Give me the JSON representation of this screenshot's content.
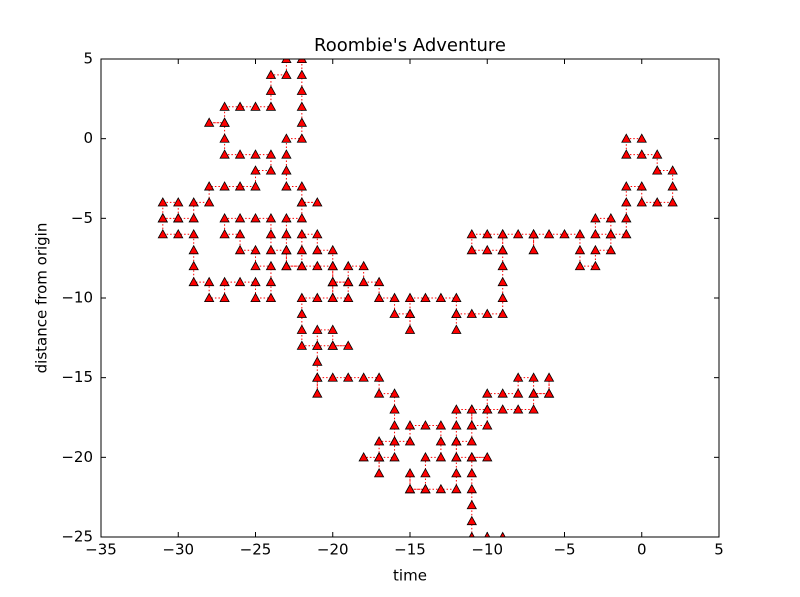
{
  "chart_data": {
    "type": "line",
    "title": "Roombie's Adventure",
    "x_label": "time",
    "y_label": "distance from origin",
    "color": "#ff0000",
    "marker": "^",
    "linestyle": "dotted",
    "x": [
      0,
      -1,
      -1,
      0,
      1,
      1,
      2,
      2,
      2,
      1,
      0,
      0,
      -1,
      -1,
      -1,
      -1,
      -2,
      -3,
      -3,
      -2,
      -2,
      -2,
      -3,
      -3,
      -4,
      -4,
      -4,
      -5,
      -6,
      -7,
      -7,
      -7,
      -8,
      -9,
      -9,
      -10,
      -11,
      -11,
      -10,
      -9,
      -9,
      -9,
      -9,
      -9,
      -9,
      -10,
      -11,
      -12,
      -12,
      -12,
      -12,
      -13,
      -14,
      -15,
      -15,
      -15,
      -15,
      -16,
      -16,
      -17,
      -17,
      -18,
      -18,
      -19,
      -19,
      -20,
      -20,
      -20,
      -20,
      -20,
      -21,
      -21,
      -22,
      -22,
      -22,
      -23,
      -23,
      -23,
      -23,
      -22,
      -22,
      -21,
      -22,
      -22,
      -23,
      -23,
      -23,
      -23,
      -22,
      -22,
      -22,
      -22,
      -22,
      -22,
      -23,
      -23,
      -24,
      -24,
      -24,
      -25,
      -26,
      -27,
      -27,
      -28,
      -27,
      -27,
      -27,
      -26,
      -25,
      -24,
      -24,
      -25,
      -25,
      -26,
      -27,
      -28,
      -28,
      -29,
      -29,
      -30,
      -31,
      -31,
      -30,
      -30,
      -31,
      -31,
      -30,
      -29,
      -29,
      -29,
      -29,
      -28,
      -28,
      -27,
      -27,
      -26,
      -25,
      -25,
      -24,
      -24,
      -24,
      -25,
      -25,
      -26,
      -26,
      -27,
      -27,
      -26,
      -25,
      -24,
      -24,
      -24,
      -23,
      -23,
      -22,
      -21,
      -20,
      -20,
      -19,
      -19,
      -20,
      -21,
      -22,
      -22,
      -22,
      -22,
      -21,
      -21,
      -20,
      -20,
      -19,
      -20,
      -21,
      -21,
      -21,
      -21,
      -21,
      -20,
      -19,
      -18,
      -17,
      -17,
      -16,
      -16,
      -16,
      -16,
      -17,
      -17,
      -17,
      -17,
      -18,
      -17,
      -16,
      -16,
      -15,
      -15,
      -14,
      -13,
      -13,
      -13,
      -14,
      -14,
      -14,
      -15,
      -15,
      -15,
      -14,
      -13,
      -12,
      -12,
      -12,
      -12,
      -12,
      -12,
      -11,
      -11,
      -10,
      -10,
      -10,
      -9,
      -8,
      -8,
      -7,
      -7,
      -6,
      -6,
      -6,
      -7,
      -7,
      -8,
      -9,
      -10,
      -11,
      -11,
      -11,
      -12,
      -12,
      -11,
      -10,
      -11,
      -11,
      -11,
      -11,
      -11,
      -11,
      -10,
      -9
    ],
    "y": [
      0,
      0,
      -1,
      -1,
      -1,
      -2,
      -2,
      -3,
      -4,
      -4,
      -4,
      -3,
      -3,
      -4,
      -5,
      -6,
      -6,
      -6,
      -5,
      -5,
      -6,
      -7,
      -7,
      -8,
      -8,
      -7,
      -6,
      -6,
      -6,
      -6,
      -7,
      -6,
      -6,
      -6,
      -7,
      -7,
      -7,
      -6,
      -6,
      -6,
      -7,
      -8,
      -9,
      -10,
      -11,
      -11,
      -11,
      -11,
      -12,
      -11,
      -10,
      -10,
      -10,
      -10,
      -11,
      -12,
      -11,
      -11,
      -10,
      -10,
      -9,
      -9,
      -8,
      -8,
      -9,
      -9,
      -10,
      -9,
      -8,
      -7,
      -7,
      -6,
      -6,
      -7,
      -8,
      -8,
      -7,
      -6,
      -5,
      -5,
      -4,
      -4,
      -4,
      -3,
      -3,
      -2,
      -1,
      0,
      0,
      1,
      2,
      3,
      4,
      5,
      5,
      4,
      4,
      3,
      2,
      2,
      2,
      2,
      1,
      1,
      1,
      0,
      -1,
      -1,
      -1,
      -1,
      -2,
      -2,
      -3,
      -3,
      -3,
      -3,
      -4,
      -4,
      -5,
      -5,
      -5,
      -4,
      -4,
      -5,
      -5,
      -6,
      -6,
      -6,
      -7,
      -8,
      -9,
      -9,
      -10,
      -10,
      -9,
      -9,
      -9,
      -10,
      -10,
      -9,
      -8,
      -8,
      -7,
      -7,
      -6,
      -6,
      -5,
      -5,
      -5,
      -5,
      -6,
      -7,
      -7,
      -8,
      -8,
      -8,
      -8,
      -9,
      -9,
      -10,
      -10,
      -10,
      -10,
      -11,
      -12,
      -13,
      -13,
      -12,
      -12,
      -13,
      -13,
      -13,
      -13,
      -14,
      -15,
      -16,
      -15,
      -15,
      -15,
      -15,
      -15,
      -16,
      -16,
      -17,
      -18,
      -19,
      -19,
      -20,
      -21,
      -20,
      -20,
      -20,
      -20,
      -19,
      -19,
      -18,
      -18,
      -18,
      -19,
      -20,
      -20,
      -21,
      -22,
      -22,
      -21,
      -22,
      -22,
      -22,
      -22,
      -21,
      -20,
      -19,
      -18,
      -17,
      -17,
      -18,
      -18,
      -17,
      -16,
      -16,
      -16,
      -15,
      -15,
      -16,
      -16,
      -15,
      -16,
      -16,
      -17,
      -17,
      -17,
      -17,
      -17,
      -18,
      -19,
      -19,
      -20,
      -20,
      -20,
      -20,
      -21,
      -22,
      -23,
      -24,
      -25,
      -25,
      -25
    ],
    "xlim": [
      -35,
      5
    ],
    "xticks": [
      {
        "value": -35,
        "label": "−35"
      },
      {
        "value": -30,
        "label": "−30"
      },
      {
        "value": -25,
        "label": "−25"
      },
      {
        "value": -20,
        "label": "−20"
      },
      {
        "value": -15,
        "label": "−15"
      },
      {
        "value": -10,
        "label": "−10"
      },
      {
        "value": -5,
        "label": "−5"
      },
      0,
      5
    ],
    "ylim": [
      -25,
      5
    ],
    "yticks": [
      {
        "value": -25,
        "label": "−25"
      },
      {
        "value": -20,
        "label": "−20"
      },
      {
        "value": -15,
        "label": "−15"
      },
      {
        "value": -10,
        "label": "−10"
      },
      {
        "value": -5,
        "label": "−5"
      },
      0,
      5
    ]
  }
}
